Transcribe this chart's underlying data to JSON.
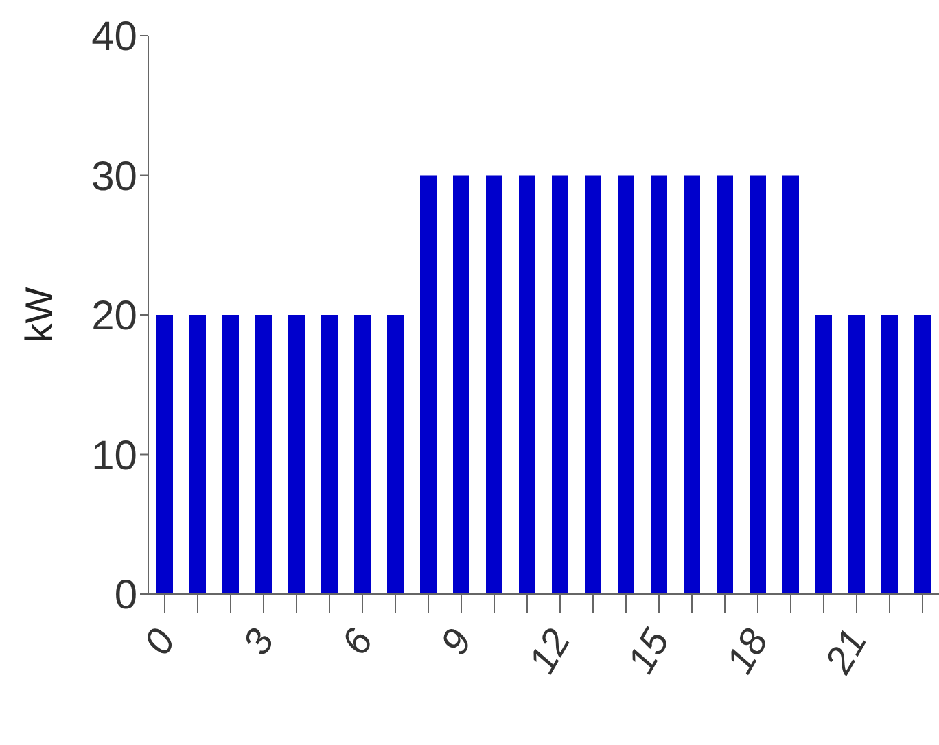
{
  "chart_data": {
    "type": "bar",
    "ylabel": "kW",
    "categories": [
      "0",
      null,
      null,
      "3",
      null,
      null,
      "6",
      null,
      null,
      "9",
      null,
      null,
      "12",
      null,
      null,
      "15",
      null,
      null,
      "18",
      null,
      null,
      "21",
      null,
      null
    ],
    "values": [
      20,
      20,
      20,
      20,
      20,
      20,
      20,
      20,
      30,
      30,
      30,
      30,
      30,
      30,
      30,
      30,
      30,
      30,
      30,
      30,
      20,
      20,
      20,
      20
    ],
    "color": "#0000cc",
    "ylim": [
      0,
      40
    ],
    "yticks": [
      0,
      10,
      20,
      30,
      40
    ],
    "grid": false,
    "legend": false
  }
}
